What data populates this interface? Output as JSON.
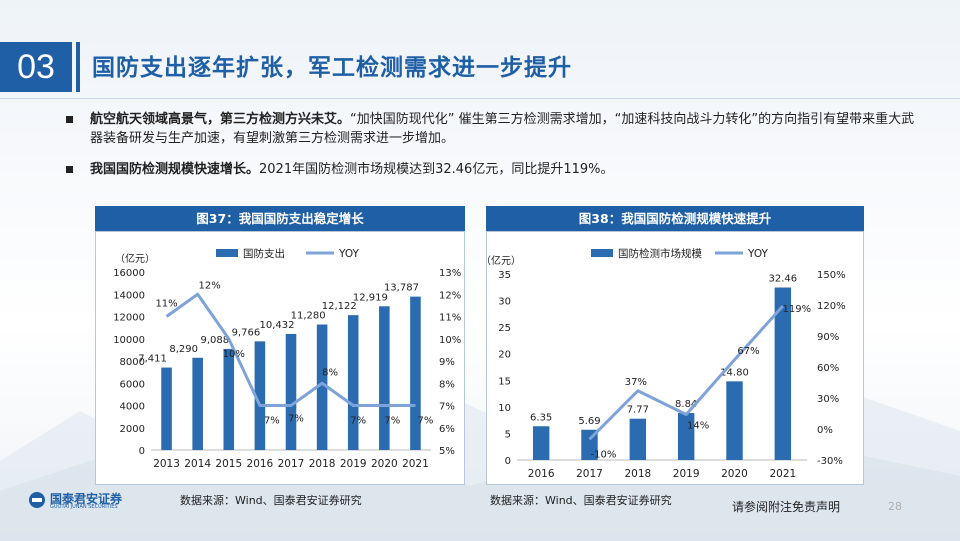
{
  "header": {
    "section_number": "03",
    "title": "国防支出逐年扩张，军工检测需求进一步提升"
  },
  "bullets": [
    {
      "bold": "航空航天领域高景气，第三方检测方兴未艾。",
      "text": "“加快国防现代化” 催生第三方检测需求增加，“加速科技向战斗力转化”的方向指引有望带来重大武器装备研发与生产加速，有望刺激第三方检测需求进一步增加。"
    },
    {
      "bold": "我国国防检测规模快速增长。",
      "text": "2021年国防检测市场规模达到32.46亿元，同比提升119%。"
    }
  ],
  "panels": [
    {
      "title": "图37：我国国防支出稳定增长",
      "source": "数据来源：Wind、国泰君安证券研究"
    },
    {
      "title": "图38：我国国防检测规模快速提升",
      "source": "数据来源：Wind、国泰君安证券研究"
    }
  ],
  "footer": {
    "logo_text": "国泰君安证券",
    "logo_sub": "GUOTAI JUNAN SECURITIES",
    "disclaimer": "请参阅附注免责声明",
    "page": "28"
  },
  "colors": {
    "bar": "#2b6cb0",
    "line": "#7ea3d8",
    "accent": "#1f5fa6"
  },
  "chart_data": [
    {
      "type": "bar",
      "title": "图37：我国国防支出稳定增长",
      "unit_label": "（亿元）",
      "categories": [
        "2013",
        "2014",
        "2015",
        "2016",
        "2017",
        "2018",
        "2019",
        "2020",
        "2021"
      ],
      "series": [
        {
          "name": "国防支出",
          "type": "bar",
          "axis": "left",
          "values": [
            7411,
            8290,
            9088,
            9766,
            10432,
            11280,
            12122,
            12919,
            13787
          ],
          "labels": [
            "7,411",
            "8,290",
            "9,088",
            "9,766",
            "10,432",
            "11,280",
            "12,122",
            "12,919",
            "13,787"
          ]
        },
        {
          "name": "YOY",
          "type": "line",
          "axis": "right",
          "values": [
            11,
            12,
            10,
            7,
            7,
            8,
            7,
            7,
            7
          ],
          "labels": [
            "11%",
            "12%",
            "10%",
            "7%",
            "7%",
            "8%",
            "7%",
            "7%",
            "7%"
          ]
        }
      ],
      "ylim_left": [
        0,
        16000
      ],
      "yticks_left": [
        "0",
        "2000",
        "4000",
        "6000",
        "8000",
        "10000",
        "12000",
        "14000",
        "16000"
      ],
      "ylim_right": [
        5,
        13
      ],
      "yticks_right": [
        "5%",
        "6%",
        "7%",
        "8%",
        "9%",
        "10%",
        "11%",
        "12%",
        "13%"
      ],
      "legend": "top"
    },
    {
      "type": "bar",
      "title": "图38：我国国防检测规模快速提升",
      "unit_label": "（亿元）",
      "categories": [
        "2016",
        "2017",
        "2018",
        "2019",
        "2020",
        "2021"
      ],
      "series": [
        {
          "name": "国防检测市场规模",
          "type": "bar",
          "axis": "left",
          "values": [
            6.35,
            5.69,
            7.77,
            8.84,
            14.8,
            32.46
          ],
          "labels": [
            "6.35",
            "5.69",
            "7.77",
            "8.84",
            "14.80",
            "32.46"
          ]
        },
        {
          "name": "YOY",
          "type": "line",
          "axis": "right",
          "values": [
            null,
            -10,
            37,
            14,
            67,
            119
          ],
          "labels": [
            "",
            "-10%",
            "37%",
            "14%",
            "67%",
            "119%"
          ]
        }
      ],
      "ylim_left": [
        0,
        35
      ],
      "yticks_left": [
        "0",
        "5",
        "10",
        "15",
        "20",
        "25",
        "30",
        "35"
      ],
      "ylim_right": [
        -30,
        150
      ],
      "yticks_right": [
        "-30%",
        "0%",
        "30%",
        "60%",
        "90%",
        "120%",
        "150%"
      ],
      "legend": "top"
    }
  ]
}
